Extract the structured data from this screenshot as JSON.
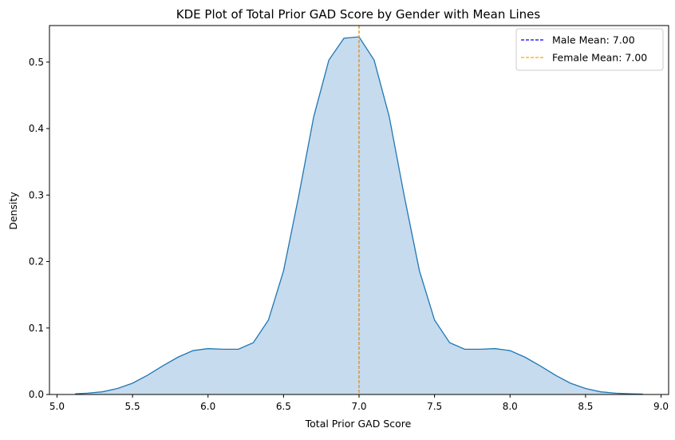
{
  "chart_data": {
    "type": "area",
    "title": "KDE Plot of Total Prior GAD Score by Gender with Mean Lines",
    "xlabel": "Total Prior GAD Score",
    "ylabel": "Density",
    "xlim": [
      4.95,
      9.05
    ],
    "ylim": [
      0,
      0.555
    ],
    "xticks": [
      5.0,
      5.5,
      6.0,
      6.5,
      7.0,
      7.5,
      8.0,
      8.5,
      9.0
    ],
    "xtick_labels": [
      "5.0",
      "5.5",
      "6.0",
      "6.5",
      "7.0",
      "7.5",
      "8.0",
      "8.5",
      "9.0"
    ],
    "yticks": [
      0.0,
      0.1,
      0.2,
      0.3,
      0.4,
      0.5
    ],
    "ytick_labels": [
      "0.0",
      "0.1",
      "0.2",
      "0.3",
      "0.4",
      "0.5"
    ],
    "grid": false,
    "legend_position": "top-right",
    "series": [
      {
        "fill_color": "#c6dbed",
        "line_color": "#1f77b4",
        "x": [
          5.12,
          5.2,
          5.3,
          5.4,
          5.5,
          5.6,
          5.7,
          5.8,
          5.9,
          6.0,
          6.1,
          6.2,
          6.3,
          6.4,
          6.5,
          6.6,
          6.7,
          6.8,
          6.9,
          7.0,
          7.1,
          7.2,
          7.3,
          7.4,
          7.5,
          7.6,
          7.7,
          7.8,
          7.9,
          8.0,
          8.1,
          8.2,
          8.3,
          8.4,
          8.5,
          8.6,
          8.7,
          8.8,
          8.88
        ],
        "y": [
          0.001,
          0.002,
          0.004,
          0.009,
          0.017,
          0.029,
          0.043,
          0.056,
          0.066,
          0.069,
          0.068,
          0.068,
          0.078,
          0.112,
          0.186,
          0.298,
          0.418,
          0.503,
          0.536,
          0.538,
          0.503,
          0.418,
          0.298,
          0.186,
          0.112,
          0.078,
          0.068,
          0.068,
          0.069,
          0.066,
          0.056,
          0.043,
          0.029,
          0.017,
          0.009,
          0.004,
          0.002,
          0.001,
          0.0005
        ]
      }
    ],
    "mean_lines": [
      {
        "label": "Male Mean: 7.00",
        "x": 7.0,
        "color": "#0000ff"
      },
      {
        "label": "Female Mean: 7.00",
        "x": 7.0,
        "color": "#ffa500"
      }
    ]
  }
}
